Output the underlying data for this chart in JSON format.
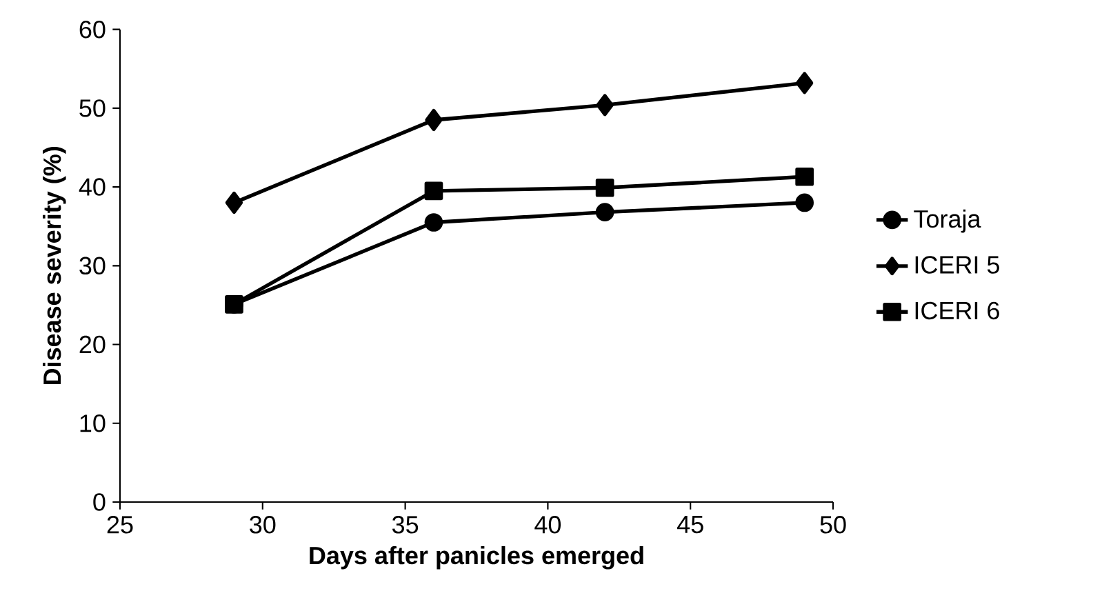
{
  "chart_data": {
    "type": "line",
    "xlabel": "Days after panicles emerged",
    "ylabel": "Disease severity (%)",
    "xlim": [
      25,
      50
    ],
    "xticks": [
      25,
      30,
      35,
      40,
      45,
      50
    ],
    "ylim": [
      0,
      60
    ],
    "yticks": [
      0,
      10,
      20,
      30,
      40,
      50,
      60
    ],
    "grid": false,
    "legend": "right",
    "line_style": "solid",
    "series": [
      {
        "name": "Toraja",
        "color": "#000000",
        "marker": "circle",
        "x": [
          29,
          36,
          42,
          49
        ],
        "values": [
          25.1,
          35.5,
          36.8,
          38.0
        ]
      },
      {
        "name": "ICERI 5",
        "color": "#000000",
        "marker": "diamond",
        "x": [
          29,
          36,
          42,
          49
        ],
        "values": [
          38.0,
          48.5,
          50.4,
          53.2
        ]
      },
      {
        "name": "ICERI 6",
        "color": "#000000",
        "marker": "square",
        "x": [
          29,
          36,
          42,
          49
        ],
        "values": [
          25.1,
          39.5,
          39.9,
          41.3
        ]
      }
    ]
  }
}
